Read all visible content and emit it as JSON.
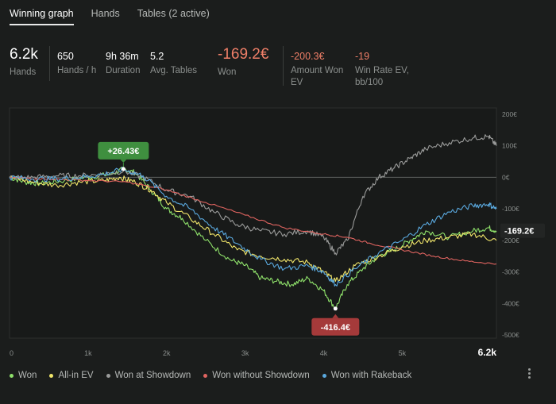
{
  "tabs": [
    {
      "label": "Winning graph",
      "active": true
    },
    {
      "label": "Hands",
      "active": false
    },
    {
      "label": "Tables (2 active)",
      "active": false
    }
  ],
  "stats": {
    "hands": {
      "value": "6.2k",
      "label": "Hands"
    },
    "hands_per_hour": {
      "value": "650",
      "label": "Hands / h"
    },
    "duration": {
      "value": "9h 36m",
      "label": "Duration"
    },
    "avg_tables": {
      "value": "5.2",
      "label": "Avg. Tables"
    },
    "won": {
      "value": "-169.2€",
      "label": "Won"
    },
    "amount_won_ev": {
      "value": "-200.3€",
      "label_1": "Amount Won",
      "label_2": "EV"
    },
    "win_rate_ev": {
      "value": "-19",
      "label_1": "Win Rate EV,",
      "label_2": "bb/100"
    }
  },
  "chart_data": {
    "type": "line",
    "x_ticks": [
      "0",
      "1k",
      "2k",
      "3k",
      "4k",
      "5k",
      "6.2k"
    ],
    "x_tick_values": [
      0,
      1000,
      2000,
      3000,
      4000,
      5000,
      6200
    ],
    "xlim": [
      0,
      6200
    ],
    "y_ticks": [
      "200€",
      "100€",
      "0€",
      "-100€",
      "-200€",
      "-300€",
      "-400€",
      "-500€"
    ],
    "y_tick_values": [
      200,
      100,
      0,
      -100,
      -200,
      -300,
      -400,
      -500
    ],
    "ylim": [
      -500,
      200
    ],
    "colors": {
      "won": "#8ee06a",
      "allin": "#f0e56a",
      "showdown": "#9a9b9a",
      "noshowdown": "#e06460",
      "rakeback": "#5aa9df",
      "peak_bg": "#3f8f3f",
      "low_bg": "#a53a3a",
      "final_bg": "#232524"
    },
    "annotations": {
      "peak": {
        "label": "+26.43€",
        "x": 1450,
        "y": 26.43
      },
      "low": {
        "label": "-416.4€",
        "x": 4150,
        "y": -416.4
      },
      "final": {
        "label": "-169.2€",
        "x": 6200,
        "y": -169.2
      }
    },
    "series": [
      {
        "key": "won",
        "name": "Won",
        "points": [
          [
            0,
            0
          ],
          [
            200,
            -15
          ],
          [
            400,
            -20
          ],
          [
            700,
            -10
          ],
          [
            1000,
            0
          ],
          [
            1300,
            10
          ],
          [
            1450,
            26
          ],
          [
            1600,
            15
          ],
          [
            1800,
            -40
          ],
          [
            2000,
            -100
          ],
          [
            2200,
            -130
          ],
          [
            2500,
            -200
          ],
          [
            2800,
            -260
          ],
          [
            3000,
            -280
          ],
          [
            3200,
            -320
          ],
          [
            3400,
            -330
          ],
          [
            3600,
            -340
          ],
          [
            3800,
            -320
          ],
          [
            4000,
            -360
          ],
          [
            4150,
            -416
          ],
          [
            4300,
            -340
          ],
          [
            4500,
            -290
          ],
          [
            4700,
            -250
          ],
          [
            4900,
            -230
          ],
          [
            5100,
            -200
          ],
          [
            5300,
            -170
          ],
          [
            5600,
            -190
          ],
          [
            5900,
            -170
          ],
          [
            6100,
            -160
          ],
          [
            6200,
            -170
          ]
        ]
      },
      {
        "key": "allin",
        "name": "All-in EV",
        "points": [
          [
            0,
            0
          ],
          [
            300,
            -15
          ],
          [
            600,
            -25
          ],
          [
            900,
            -15
          ],
          [
            1200,
            -10
          ],
          [
            1400,
            0
          ],
          [
            1600,
            -15
          ],
          [
            1800,
            -40
          ],
          [
            2000,
            -80
          ],
          [
            2300,
            -130
          ],
          [
            2600,
            -180
          ],
          [
            2900,
            -230
          ],
          [
            3200,
            -250
          ],
          [
            3500,
            -260
          ],
          [
            3800,
            -270
          ],
          [
            4000,
            -300
          ],
          [
            4150,
            -330
          ],
          [
            4400,
            -280
          ],
          [
            4700,
            -250
          ],
          [
            5000,
            -220
          ],
          [
            5300,
            -200
          ],
          [
            5600,
            -190
          ],
          [
            5900,
            -180
          ],
          [
            6200,
            -200
          ]
        ]
      },
      {
        "key": "showdown",
        "name": "Won at Showdown",
        "points": [
          [
            0,
            0
          ],
          [
            300,
            0
          ],
          [
            600,
            5
          ],
          [
            900,
            5
          ],
          [
            1200,
            10
          ],
          [
            1450,
            20
          ],
          [
            1700,
            0
          ],
          [
            2000,
            -40
          ],
          [
            2300,
            -60
          ],
          [
            2600,
            -110
          ],
          [
            2900,
            -150
          ],
          [
            3200,
            -170
          ],
          [
            3500,
            -180
          ],
          [
            3800,
            -170
          ],
          [
            4000,
            -190
          ],
          [
            4150,
            -240
          ],
          [
            4300,
            -200
          ],
          [
            4500,
            -60
          ],
          [
            4700,
            0
          ],
          [
            4900,
            30
          ],
          [
            5100,
            60
          ],
          [
            5300,
            90
          ],
          [
            5600,
            110
          ],
          [
            5900,
            125
          ],
          [
            6100,
            130
          ],
          [
            6200,
            100
          ]
        ]
      },
      {
        "key": "noshowdown",
        "name": "Won without Showdown",
        "points": [
          [
            0,
            0
          ],
          [
            500,
            -5
          ],
          [
            1000,
            -10
          ],
          [
            1500,
            -15
          ],
          [
            2000,
            -40
          ],
          [
            2500,
            -80
          ],
          [
            3000,
            -120
          ],
          [
            3500,
            -160
          ],
          [
            4000,
            -180
          ],
          [
            4300,
            -190
          ],
          [
            4600,
            -210
          ],
          [
            5000,
            -230
          ],
          [
            5400,
            -250
          ],
          [
            5800,
            -265
          ],
          [
            6200,
            -275
          ]
        ]
      },
      {
        "key": "rakeback",
        "name": "Won with Rakeback",
        "points": [
          [
            0,
            0
          ],
          [
            300,
            -5
          ],
          [
            600,
            -5
          ],
          [
            900,
            0
          ],
          [
            1200,
            10
          ],
          [
            1450,
            25
          ],
          [
            1700,
            5
          ],
          [
            2000,
            -60
          ],
          [
            2300,
            -100
          ],
          [
            2600,
            -160
          ],
          [
            2900,
            -210
          ],
          [
            3200,
            -260
          ],
          [
            3500,
            -290
          ],
          [
            3800,
            -280
          ],
          [
            4000,
            -300
          ],
          [
            4150,
            -340
          ],
          [
            4400,
            -290
          ],
          [
            4700,
            -240
          ],
          [
            5000,
            -200
          ],
          [
            5300,
            -150
          ],
          [
            5600,
            -110
          ],
          [
            5900,
            -90
          ],
          [
            6100,
            -85
          ],
          [
            6200,
            -100
          ]
        ]
      }
    ]
  },
  "legend": [
    {
      "key": "won",
      "label": "Won"
    },
    {
      "key": "allin",
      "label": "All-in EV"
    },
    {
      "key": "showdown",
      "label": "Won at Showdown"
    },
    {
      "key": "noshowdown",
      "label": "Won without Showdown"
    },
    {
      "key": "rakeback",
      "label": "Won with Rakeback"
    }
  ],
  "icons": {
    "menu": "kebab-menu-icon"
  }
}
